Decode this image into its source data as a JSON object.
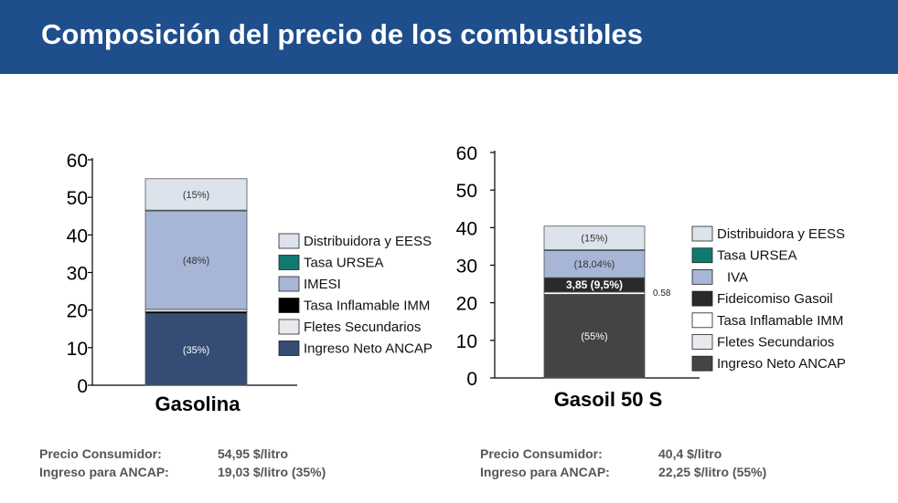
{
  "header": {
    "title": "Composición del precio de los combustibles",
    "background": "#1f4e8c"
  },
  "chart_data": [
    {
      "type": "bar",
      "stacked": true,
      "title": "",
      "xlabel": "Gasolina",
      "ylabel": "",
      "ylim": [
        0,
        60
      ],
      "yticks": [
        "0",
        "10",
        "20",
        "30",
        "40",
        "50",
        "60"
      ],
      "legend_position": "right",
      "legend": [
        {
          "label": "Distribuidora y EESS",
          "color": "#dde3ec"
        },
        {
          "label": "Tasa URSEA",
          "color": "#117a70"
        },
        {
          "label": "IMESI",
          "color": "#a7b6d6"
        },
        {
          "label": "Tasa Inflamable IMM",
          "color": "#000000"
        },
        {
          "label": "Fletes Secundarios",
          "color": "#e8eaee"
        },
        {
          "label": "Ingreso Neto ANCAP",
          "color": "#354d74"
        }
      ],
      "segments": [
        {
          "name": "Ingreso Neto ANCAP",
          "start": 0,
          "end": 19.03,
          "color": "#354d74",
          "label": "(35%)",
          "label_color": "#ffffff"
        },
        {
          "name": "Tasa Inflamable IMM",
          "start": 19.03,
          "end": 19.6,
          "color": "#000000",
          "label": ""
        },
        {
          "name": "Fletes Secundarios",
          "start": 19.6,
          "end": 20.2,
          "color": "#e8eaee",
          "label": ""
        },
        {
          "name": "IMESI",
          "start": 20.2,
          "end": 46.4,
          "color": "#a7b6d6",
          "label": "(48%)",
          "label_color": "#333333"
        },
        {
          "name": "Tasa URSEA",
          "start": 46.4,
          "end": 46.6,
          "color": "#117a70",
          "label": ""
        },
        {
          "name": "Distribuidora y EESS",
          "start": 46.6,
          "end": 54.95,
          "color": "#dde3ec",
          "label": "(15%)",
          "label_color": "#333333"
        }
      ]
    },
    {
      "type": "bar",
      "stacked": true,
      "title": "",
      "xlabel": "Gasoil 50 S",
      "ylabel": "",
      "ylim": [
        0,
        60
      ],
      "yticks": [
        "0",
        "10",
        "20",
        "30",
        "40",
        "50",
        "60"
      ],
      "legend_position": "right",
      "annotation": "0.58",
      "legend": [
        {
          "label": "Distribuidora y EESS",
          "color": "#dde3ec"
        },
        {
          "label": "Tasa URSEA",
          "color": "#117a70"
        },
        {
          "label": "IVA",
          "color": "#a7b6d6"
        },
        {
          "label": "Fideicomiso Gasoil",
          "color": "#2a2a2a"
        },
        {
          "label": "Tasa Inflamable IMM",
          "color": "#ffffff"
        },
        {
          "label": "Fletes Secundarios",
          "color": "#e8eaee"
        },
        {
          "label": "Ingreso Neto ANCAP",
          "color": "#444444"
        }
      ],
      "segments": [
        {
          "name": "Ingreso Neto ANCAP",
          "start": 0,
          "end": 22.25,
          "color": "#444444",
          "label": "(55%)",
          "label_color": "#ffffff"
        },
        {
          "name": "Tasa Inflamable IMM",
          "start": 22.25,
          "end": 22.83,
          "color": "#ffffff",
          "label": ""
        },
        {
          "name": "Fideicomiso Gasoil",
          "start": 22.83,
          "end": 26.68,
          "color": "#2a2a2a",
          "label": "3,85 (9,5%)",
          "label_color": "#ffffff",
          "bold": true
        },
        {
          "name": "IVA",
          "start": 26.68,
          "end": 33.96,
          "color": "#a7b6d6",
          "label": "(18,04%)",
          "label_color": "#333333"
        },
        {
          "name": "Tasa URSEA",
          "start": 33.96,
          "end": 34.1,
          "color": "#117a70",
          "label": ""
        },
        {
          "name": "Distribuidora y EESS",
          "start": 34.1,
          "end": 40.4,
          "color": "#dde3ec",
          "label": "(15%)",
          "label_color": "#333333"
        }
      ]
    }
  ],
  "footer": {
    "left": {
      "consumer_label": "Precio Consumidor:",
      "consumer_value": "54,95 $/litro",
      "ancap_label": "Ingreso para ANCAP:",
      "ancap_value": "19,03 $/litro (35%)"
    },
    "right": {
      "consumer_label": "Precio Consumidor:",
      "consumer_value": "40,4 $/litro",
      "ancap_label": "Ingreso para ANCAP:",
      "ancap_value": "22,25 $/litro (55%)"
    }
  }
}
